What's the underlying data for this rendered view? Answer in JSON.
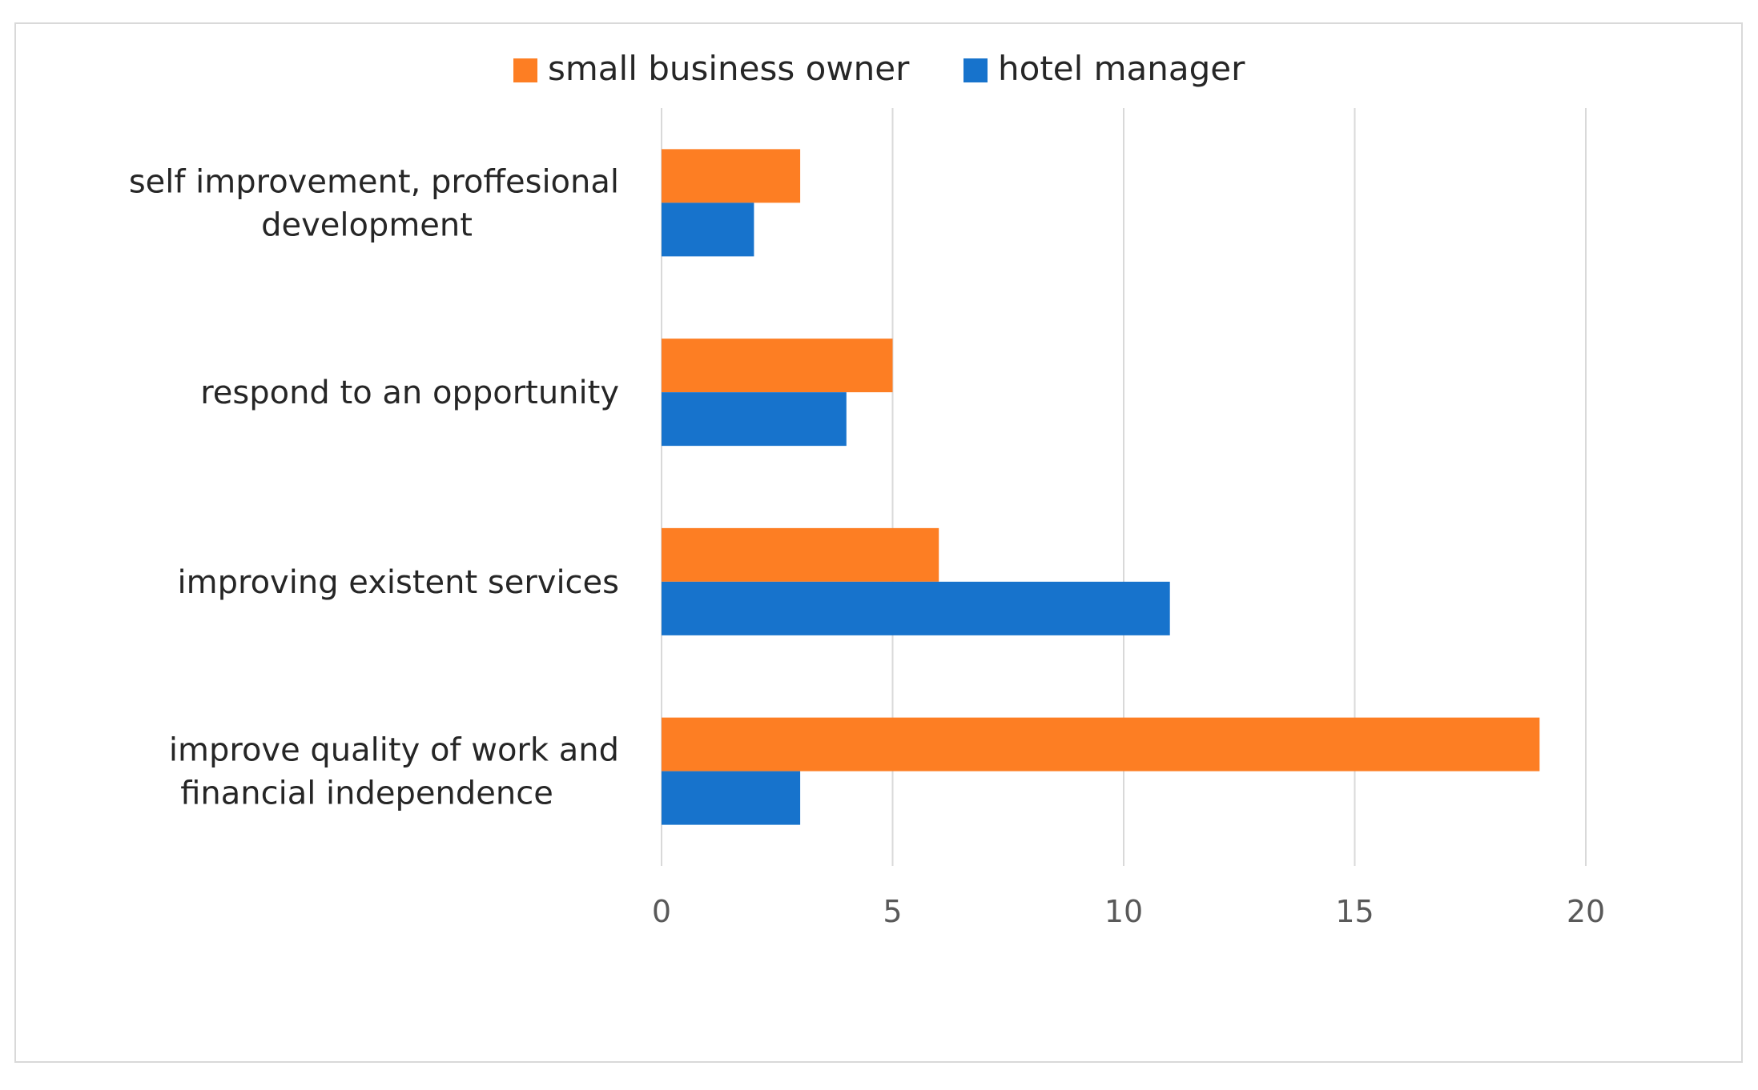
{
  "chart_data": {
    "type": "bar",
    "orientation": "horizontal",
    "categories": [
      [
        "self improvement, proffesional",
        "development"
      ],
      [
        "respond to an opportunity"
      ],
      [
        "improving existent services"
      ],
      [
        "improve quality of work and",
        "financial independence"
      ]
    ],
    "series": [
      {
        "name": "small business owner",
        "color": "#fd7e23",
        "values": [
          3,
          5,
          6,
          19
        ]
      },
      {
        "name": "hotel manager",
        "color": "#1773cc",
        "values": [
          2,
          4,
          11,
          3
        ]
      }
    ],
    "xlim": [
      0,
      20
    ],
    "xticks": [
      "0",
      "5",
      "10",
      "15",
      "20"
    ],
    "grid": true,
    "legend": "top-center",
    "title": "",
    "xlabel": "",
    "ylabel": ""
  }
}
